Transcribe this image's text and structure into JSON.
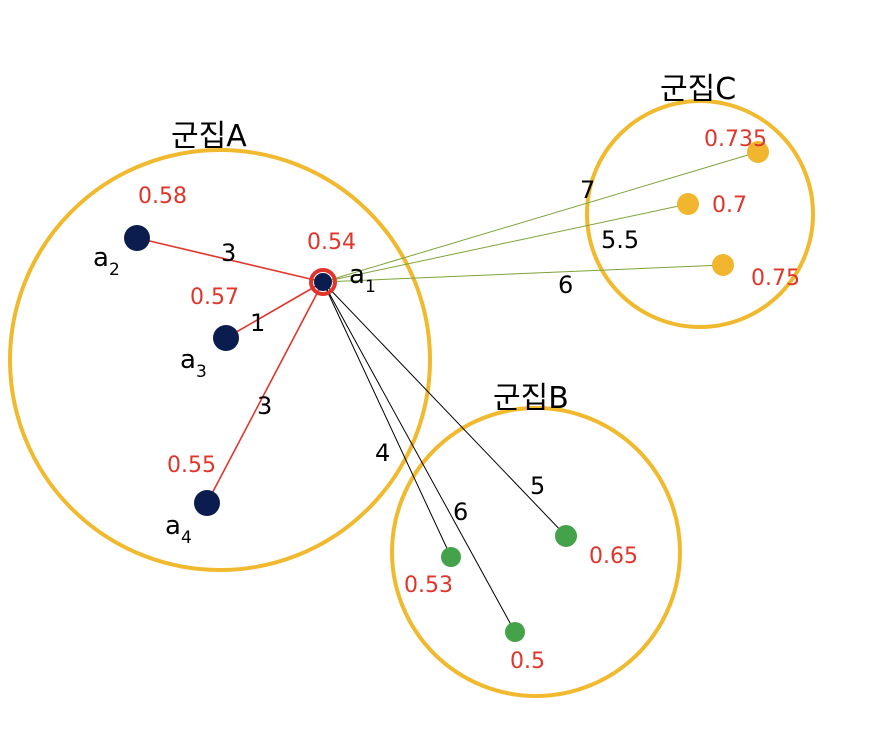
{
  "colors": {
    "circle": "#f0b92e",
    "node_a": "#0b1c4f",
    "node_b": "#43a24a",
    "node_c": "#f2b52e",
    "score": "#e0352b",
    "line_a": "#e0352b",
    "line_b": "#000000",
    "line_c": "#7fa23a",
    "highlight_ring": "#e0352b"
  },
  "clusters": {
    "a": {
      "title": "군집A"
    },
    "b": {
      "title": "군집B"
    },
    "c": {
      "title": "군집C"
    }
  },
  "nodes": {
    "a1": {
      "letter": "a",
      "sub": "1",
      "score": "0.54"
    },
    "a2": {
      "letter": "a",
      "sub": "2",
      "score": "0.58"
    },
    "a3": {
      "letter": "a",
      "sub": "3",
      "score": "0.57"
    },
    "a4": {
      "letter": "a",
      "sub": "4",
      "score": "0.55"
    },
    "b1": {
      "score": "0.53"
    },
    "b2": {
      "score": "0.5"
    },
    "b3": {
      "score": "0.65"
    },
    "c1": {
      "score": "0.735"
    },
    "c2": {
      "score": "0.7"
    },
    "c3": {
      "score": "0.75"
    }
  },
  "distances": {
    "a1_a2": "3",
    "a1_a3": "1",
    "a1_a4": "3",
    "a1_b1": "4",
    "a1_b2": "6",
    "a1_b3": "5",
    "a1_c1": "7",
    "a1_c2": "5.5",
    "a1_c3": "6"
  }
}
